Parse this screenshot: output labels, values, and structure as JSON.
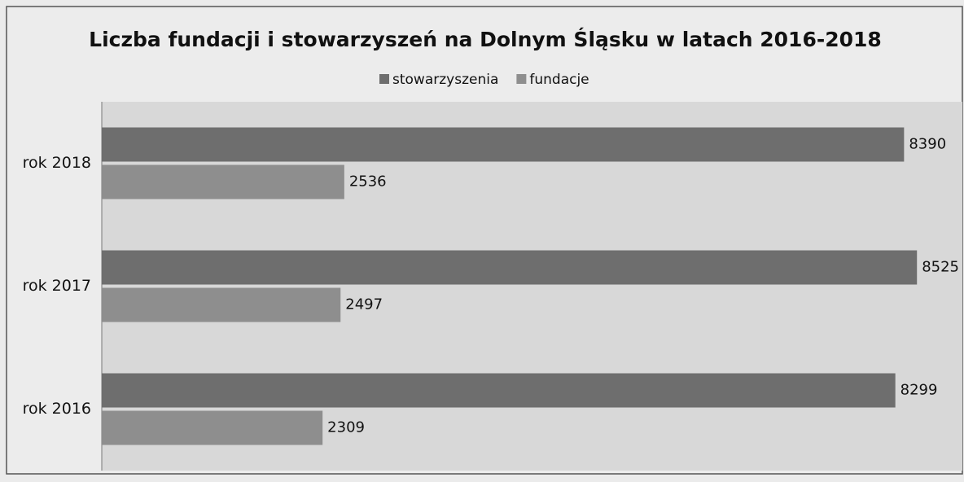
{
  "chart_data": {
    "type": "hbar",
    "title": "Liczba fundacji i stowarzyszeń na Dolnym Śląsku w latach 2016-2018",
    "categories": [
      "rok 2016",
      "rok 2017",
      "rok 2018"
    ],
    "series": [
      {
        "name": "stowarzyszenia",
        "color": "#6e6e6e",
        "values": [
          8299,
          8525,
          8390
        ]
      },
      {
        "name": "fundacje",
        "color": "#8e8e8e",
        "values": [
          2309,
          2497,
          2536
        ]
      }
    ],
    "xlim": [
      0,
      9000
    ],
    "legend": "top"
  }
}
